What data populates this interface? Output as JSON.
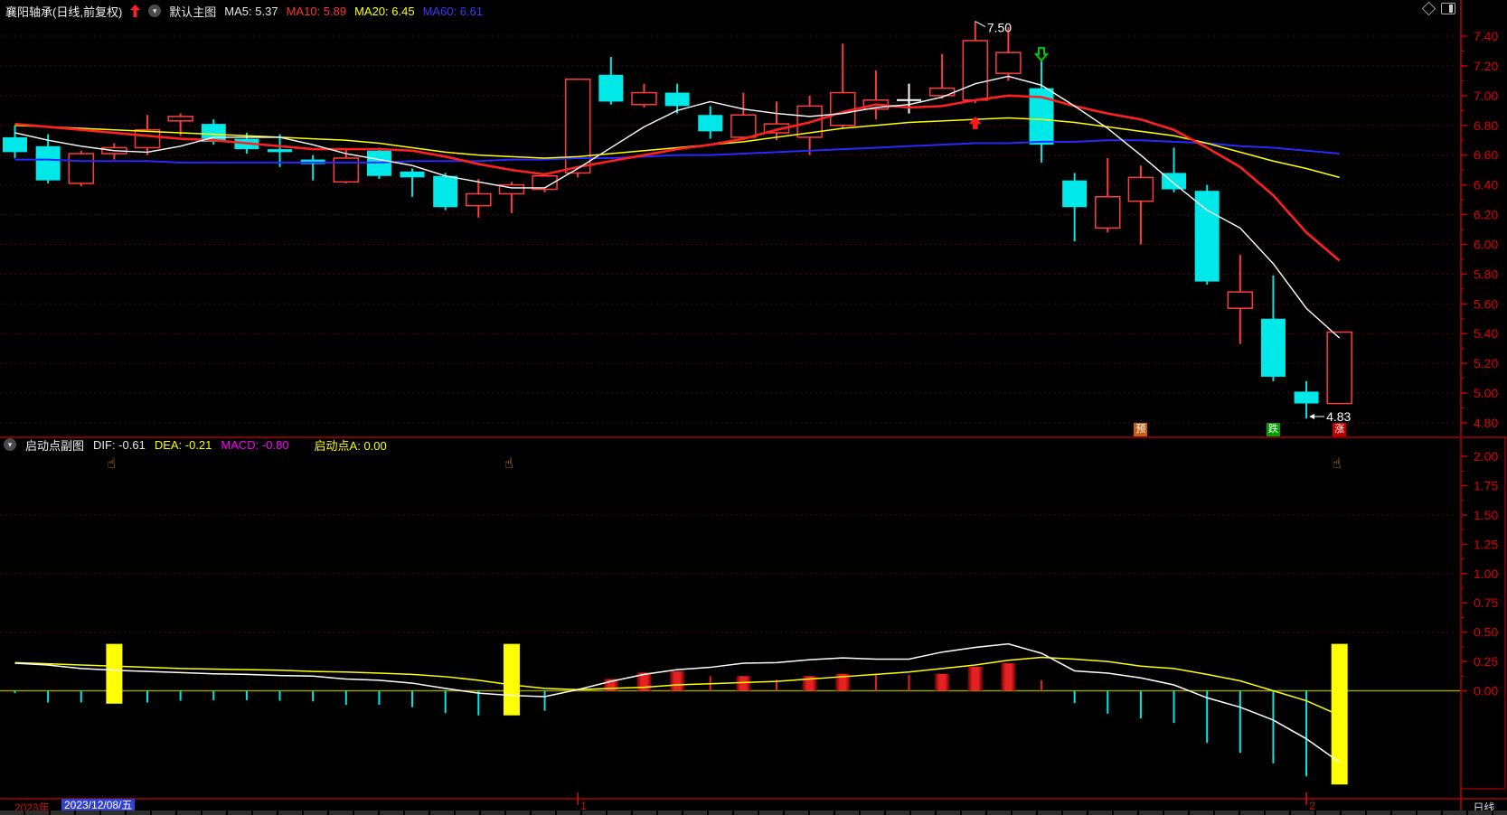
{
  "toolbar": {
    "title": "襄阳轴承(日线,前复权)",
    "view_label": "默认主图",
    "ma_labels": [
      {
        "text": "MA5: 5.37",
        "color": "#e8e8e8"
      },
      {
        "text": "MA10: 5.89",
        "color": "#ff3434"
      },
      {
        "text": "MA20: 6.45",
        "color": "#ffff00"
      },
      {
        "text": "MA60: 6.61",
        "color": "#3a3aff"
      }
    ]
  },
  "sub_header": {
    "name": "启动点副图",
    "dif": "DIF: -0.61",
    "dea": "DEA: -0.21",
    "macd": "MACD: -0.80",
    "qidongdian": "启动点A: 0.00"
  },
  "status_bar": {
    "year": "2023年",
    "date": "2023/12/08/五",
    "period": "日线",
    "months": [
      {
        "label": "1",
        "k": 17
      },
      {
        "label": "2",
        "k": 39
      }
    ]
  },
  "colors": {
    "up_red": "#ff3c3c",
    "down_cyan": "#00e8e8",
    "ma5": "#ffffff",
    "ma10": "#ff2020",
    "ma20": "#ffff00",
    "ma60": "#2828ff",
    "grid": "#800000",
    "axis_label": "#dd0000",
    "divider": "#b00000",
    "signal_yellow": "#ffff00",
    "badge_yu": "#c06018",
    "badge_die": "#00a000",
    "badge_zhang": "#c00000",
    "date_highlight": "#3340cf",
    "hand": "#f2a243",
    "magenta": "#ff00ff"
  },
  "chart_data": {
    "type": "candlestick+macd",
    "main": {
      "tick_labels": [
        "7.40",
        "7.20",
        "7.00",
        "6.80",
        "6.60",
        "6.40",
        "6.20",
        "6.00",
        "5.80",
        "5.60",
        "5.40",
        "5.20",
        "5.00",
        "4.80"
      ],
      "candles": [
        {
          "o": 6.72,
          "h": 6.8,
          "l": 6.58,
          "c": 6.62
        },
        {
          "o": 6.66,
          "h": 6.74,
          "l": 6.41,
          "c": 6.43
        },
        {
          "o": 6.41,
          "h": 6.63,
          "l": 6.39,
          "c": 6.61
        },
        {
          "o": 6.61,
          "h": 6.68,
          "l": 6.57,
          "c": 6.65
        },
        {
          "o": 6.65,
          "h": 6.87,
          "l": 6.6,
          "c": 6.77
        },
        {
          "o": 6.83,
          "h": 6.88,
          "l": 6.73,
          "c": 6.86
        },
        {
          "o": 6.81,
          "h": 6.84,
          "l": 6.67,
          "c": 6.69
        },
        {
          "o": 6.71,
          "h": 6.75,
          "l": 6.61,
          "c": 6.64
        },
        {
          "o": 6.64,
          "h": 6.74,
          "l": 6.52,
          "c": 6.62
        },
        {
          "o": 6.57,
          "h": 6.6,
          "l": 6.43,
          "c": 6.54
        },
        {
          "o": 6.42,
          "h": 6.64,
          "l": 6.41,
          "c": 6.58
        },
        {
          "o": 6.63,
          "h": 6.65,
          "l": 6.44,
          "c": 6.46
        },
        {
          "o": 6.49,
          "h": 6.51,
          "l": 6.32,
          "c": 6.45
        },
        {
          "o": 6.46,
          "h": 6.48,
          "l": 6.23,
          "c": 6.25
        },
        {
          "o": 6.26,
          "h": 6.44,
          "l": 6.18,
          "c": 6.34
        },
        {
          "o": 6.34,
          "h": 6.42,
          "l": 6.21,
          "c": 6.4
        },
        {
          "o": 6.37,
          "h": 6.48,
          "l": 6.35,
          "c": 6.46
        },
        {
          "o": 6.48,
          "h": 7.11,
          "l": 6.45,
          "c": 7.11
        },
        {
          "o": 7.14,
          "h": 7.26,
          "l": 6.94,
          "c": 6.96
        },
        {
          "o": 6.94,
          "h": 7.08,
          "l": 6.92,
          "c": 7.02
        },
        {
          "o": 7.02,
          "h": 7.08,
          "l": 6.88,
          "c": 6.93
        },
        {
          "o": 6.87,
          "h": 6.93,
          "l": 6.71,
          "c": 6.76
        },
        {
          "o": 6.72,
          "h": 7.02,
          "l": 6.7,
          "c": 6.87
        },
        {
          "o": 6.75,
          "h": 6.96,
          "l": 6.7,
          "c": 6.81
        },
        {
          "o": 6.72,
          "h": 7.0,
          "l": 6.6,
          "c": 6.93
        },
        {
          "o": 6.8,
          "h": 7.35,
          "l": 6.78,
          "c": 7.02
        },
        {
          "o": 6.91,
          "h": 7.17,
          "l": 6.84,
          "c": 6.97
        },
        {
          "o": 6.97,
          "h": 7.08,
          "l": 6.88,
          "c": 6.97
        },
        {
          "o": 7.0,
          "h": 7.28,
          "l": 6.98,
          "c": 7.05
        },
        {
          "o": 6.97,
          "h": 7.5,
          "l": 6.95,
          "c": 7.37
        },
        {
          "o": 7.15,
          "h": 7.46,
          "l": 7.1,
          "c": 7.29
        },
        {
          "o": 7.05,
          "h": 7.23,
          "l": 6.55,
          "c": 6.67
        },
        {
          "o": 6.43,
          "h": 6.48,
          "l": 6.02,
          "c": 6.25
        },
        {
          "o": 6.11,
          "h": 6.58,
          "l": 6.08,
          "c": 6.32
        },
        {
          "o": 6.29,
          "h": 6.53,
          "l": 6.0,
          "c": 6.45
        },
        {
          "o": 6.48,
          "h": 6.65,
          "l": 6.35,
          "c": 6.37
        },
        {
          "o": 6.36,
          "h": 6.4,
          "l": 5.73,
          "c": 5.75
        },
        {
          "o": 5.57,
          "h": 5.93,
          "l": 5.33,
          "c": 5.68
        },
        {
          "o": 5.5,
          "h": 5.79,
          "l": 5.08,
          "c": 5.11
        },
        {
          "o": 5.01,
          "h": 5.08,
          "l": 4.83,
          "c": 4.93
        },
        {
          "o": 4.93,
          "h": 5.41,
          "l": 4.93,
          "c": 5.41
        }
      ],
      "white_doji_index": 27,
      "ma5": [
        6.75,
        6.7,
        6.66,
        6.63,
        6.62,
        6.66,
        6.72,
        6.72,
        6.72,
        6.67,
        6.61,
        6.57,
        6.53,
        6.46,
        6.42,
        6.38,
        6.38,
        6.51,
        6.65,
        6.79,
        6.9,
        6.96,
        6.91,
        6.88,
        6.86,
        6.88,
        6.92,
        6.94,
        6.99,
        7.08,
        7.13,
        7.07,
        6.93,
        6.78,
        6.6,
        6.41,
        6.23,
        6.11,
        5.87,
        5.57,
        5.37
      ],
      "ma10": [
        6.81,
        6.79,
        6.77,
        6.75,
        6.73,
        6.71,
        6.7,
        6.68,
        6.66,
        6.64,
        6.64,
        6.64,
        6.63,
        6.59,
        6.54,
        6.5,
        6.47,
        6.52,
        6.56,
        6.6,
        6.64,
        6.67,
        6.71,
        6.77,
        6.82,
        6.89,
        6.94,
        6.92,
        6.93,
        6.97,
        7.0,
        6.99,
        6.93,
        6.88,
        6.84,
        6.77,
        6.65,
        6.52,
        6.33,
        6.08,
        5.89
      ],
      "ma20": [
        6.8,
        6.79,
        6.78,
        6.77,
        6.76,
        6.75,
        6.74,
        6.73,
        6.72,
        6.71,
        6.7,
        6.68,
        6.65,
        6.62,
        6.6,
        6.59,
        6.58,
        6.59,
        6.61,
        6.63,
        6.65,
        6.67,
        6.69,
        6.72,
        6.75,
        6.78,
        6.8,
        6.82,
        6.83,
        6.84,
        6.85,
        6.84,
        6.82,
        6.79,
        6.76,
        6.73,
        6.68,
        6.62,
        6.56,
        6.51,
        6.45
      ],
      "ma60": [
        6.57,
        6.57,
        6.56,
        6.56,
        6.56,
        6.55,
        6.55,
        6.55,
        6.55,
        6.55,
        6.55,
        6.55,
        6.56,
        6.56,
        6.56,
        6.57,
        6.57,
        6.58,
        6.58,
        6.59,
        6.6,
        6.6,
        6.61,
        6.62,
        6.63,
        6.64,
        6.65,
        6.66,
        6.67,
        6.68,
        6.68,
        6.69,
        6.69,
        6.7,
        6.7,
        6.69,
        6.68,
        6.66,
        6.65,
        6.63,
        6.61
      ],
      "annotations": [
        {
          "text": "7.50",
          "k": 29,
          "price": 7.5,
          "style": "peak"
        },
        {
          "text": "4.83",
          "k": 39,
          "price": 4.83,
          "style": "left-arrow"
        }
      ],
      "markers": [
        {
          "type": "red-up-arrow",
          "k": 29,
          "price": 6.86
        },
        {
          "type": "green-down-arrow",
          "k": 31,
          "price": 7.32
        }
      ],
      "flags": [
        {
          "text": "预",
          "bg": "#c06018",
          "k": 34
        },
        {
          "text": "跌",
          "bg": "#00a000",
          "k": 38
        },
        {
          "text": "涨",
          "bg": "#c00000",
          "k": 40
        }
      ]
    },
    "sub": {
      "tick_labels": [
        "2.00",
        "1.75",
        "1.50",
        "1.25",
        "1.00",
        "0.75",
        "0.50",
        "0.25",
        "0.00"
      ],
      "grid_levels": [
        1.5,
        1.0,
        0.5,
        0.0
      ],
      "dif": [
        0.235,
        0.22,
        0.19,
        0.175,
        0.165,
        0.155,
        0.145,
        0.14,
        0.13,
        0.125,
        0.1,
        0.09,
        0.065,
        0.02,
        -0.02,
        -0.04,
        -0.05,
        0.01,
        0.08,
        0.14,
        0.18,
        0.2,
        0.235,
        0.24,
        0.265,
        0.28,
        0.27,
        0.27,
        0.33,
        0.37,
        0.4,
        0.32,
        0.17,
        0.15,
        0.11,
        0.05,
        -0.06,
        -0.14,
        -0.25,
        -0.41,
        -0.61
      ],
      "dea": [
        0.24,
        0.23,
        0.22,
        0.21,
        0.2,
        0.19,
        0.185,
        0.18,
        0.175,
        0.165,
        0.16,
        0.15,
        0.14,
        0.12,
        0.09,
        0.05,
        0.02,
        0.01,
        0.02,
        0.03,
        0.05,
        0.06,
        0.07,
        0.08,
        0.1,
        0.12,
        0.14,
        0.16,
        0.19,
        0.22,
        0.26,
        0.285,
        0.27,
        0.25,
        0.21,
        0.19,
        0.14,
        0.085,
        0.0,
        -0.085,
        -0.21
      ],
      "macd": [
        -0.02,
        -0.1,
        -0.1,
        -0.11,
        -0.1,
        -0.085,
        -0.08,
        -0.08,
        -0.085,
        -0.09,
        -0.12,
        -0.12,
        -0.14,
        -0.19,
        -0.21,
        -0.21,
        -0.17,
        0.02,
        0.1,
        0.155,
        0.165,
        0.125,
        0.125,
        0.095,
        0.125,
        0.145,
        0.135,
        0.135,
        0.145,
        0.205,
        0.235,
        0.09,
        -0.105,
        -0.195,
        -0.235,
        -0.275,
        -0.445,
        -0.53,
        -0.62,
        -0.73,
        -0.8
      ],
      "bar_style": [
        "c",
        "c",
        "c",
        "y",
        "c",
        "c",
        "c",
        "c",
        "c",
        "c",
        "c",
        "c",
        "c",
        "c",
        "c",
        "y",
        "c",
        "r",
        "R",
        "R",
        "R",
        "r",
        "R",
        "r",
        "R",
        "R",
        "r",
        "r",
        "R",
        "R",
        "R",
        "r",
        "c",
        "c",
        "c",
        "c",
        "c",
        "c",
        "c",
        "c",
        "y"
      ],
      "signal_top": 0.4,
      "hand_indices": [
        3,
        15,
        40
      ]
    }
  }
}
